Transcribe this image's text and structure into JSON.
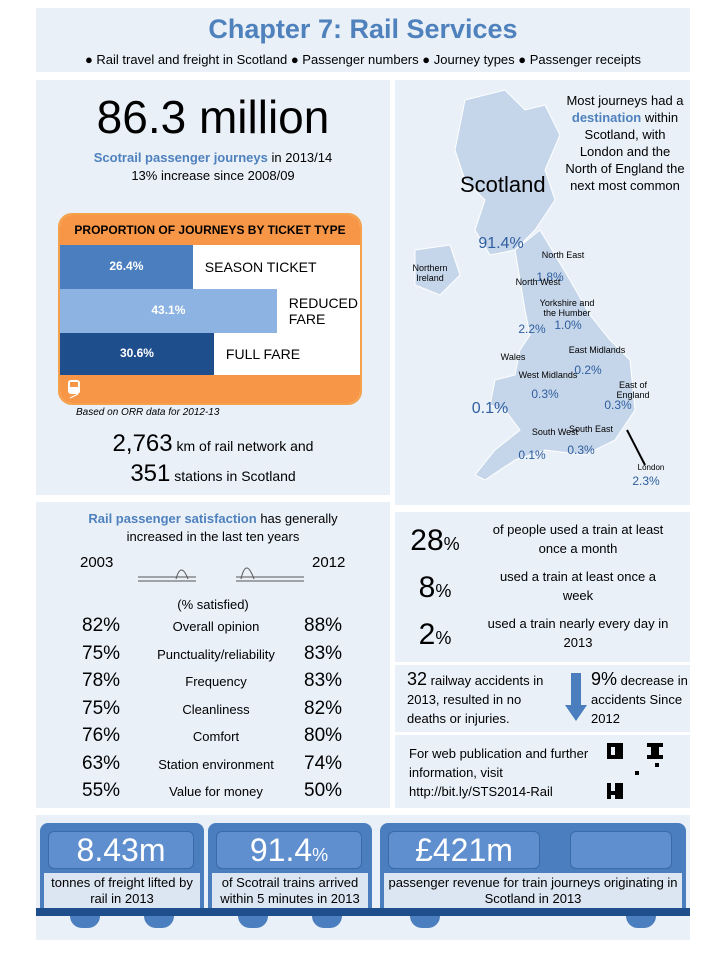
{
  "header": {
    "title": "Chapter 7: Rail Services",
    "topics": [
      "Rail travel and freight in Scotland",
      "Passenger numbers",
      "Journey types",
      "Passenger receipts"
    ]
  },
  "journeys": {
    "big_number": "86.3 million",
    "highlight": "Scotrail passenger journeys",
    "rest": "in 2013/14",
    "change": "13% increase since 2008/09"
  },
  "ticket_types": {
    "title": "PROPORTION OF JOURNEYS BY TICKET TYPE",
    "categories": [
      "SEASON TICKET",
      "REDUCED FARE",
      "FULL FARE"
    ],
    "values": [
      26.4,
      43.1,
      30.6
    ],
    "value_labels": [
      "26.4%",
      "43.1%",
      "30.6%"
    ],
    "colors": [
      "#4a7ebf",
      "#8db3e2",
      "#1f4e8c"
    ],
    "source": "Based on ORR data for 2012-13"
  },
  "network": {
    "km": "2,763",
    "km_text": "km of rail network and",
    "stations": "351",
    "stations_text": "stations in Scotland"
  },
  "map": {
    "caption_a": "Most journeys had a",
    "caption_highlight": "destination",
    "caption_b": "within Scotland, with London and the North of England the next most common",
    "regions": [
      {
        "name": "Scotland",
        "value": "91.4%"
      },
      {
        "name": "Northern Ireland"
      },
      {
        "name": "North East",
        "value": "1.8%"
      },
      {
        "name": "North West",
        "value": "2.2%"
      },
      {
        "name": "Yorkshire and the Humber",
        "value": "1.0%"
      },
      {
        "name": "East Midlands",
        "value": "0.2%"
      },
      {
        "name": "Wales",
        "value": "0.1%"
      },
      {
        "name": "West Midlands",
        "value": "0.3%"
      },
      {
        "name": "East of England",
        "value": "0.3%"
      },
      {
        "name": "South West",
        "value": "0.1%"
      },
      {
        "name": "South East",
        "value": "0.3%"
      },
      {
        "name": "London",
        "value": "2.3%"
      }
    ]
  },
  "satisfaction": {
    "highlight": "Rail passenger satisfaction",
    "rest": "has generally increased in the last ten years",
    "year_a": "2003",
    "year_b": "2012",
    "unit": "(% satisfied)",
    "rows": [
      [
        "82%",
        "Overall opinion",
        "88%"
      ],
      [
        "75%",
        "Punctuality/reliability",
        "83%"
      ],
      [
        "78%",
        "Frequency",
        "83%"
      ],
      [
        "75%",
        "Cleanliness",
        "82%"
      ],
      [
        "76%",
        "Comfort",
        "80%"
      ],
      [
        "63%",
        "Station environment",
        "74%"
      ],
      [
        "55%",
        "Value for money",
        "50%"
      ]
    ]
  },
  "usage": [
    {
      "value": "28",
      "unit": "%",
      "text": "of people used a train at least once a month"
    },
    {
      "value": "8",
      "unit": "%",
      "text": "used a train at least once a week"
    },
    {
      "value": "2",
      "unit": "%",
      "text": "used a train nearly every day in 2013"
    }
  ],
  "accidents": {
    "count": "32",
    "count_text": "railway accidents in 2013, resulted in no deaths or injuries.",
    "change": "9%",
    "change_text": "decrease in accidents Since 2012"
  },
  "web": {
    "text": "For web publication and further information, visit http://bit.ly/STS2014-Rail"
  },
  "bottom": [
    {
      "value": "8.43m",
      "text": "tonnes of freight lifted by rail in 2013"
    },
    {
      "value": "91.4",
      "unit": "%",
      "text": "of Scotrail trains arrived within 5 minutes in 2013"
    },
    {
      "value": "£421m",
      "text": "passenger revenue for train journeys originating in Scotland in 2013"
    }
  ]
}
